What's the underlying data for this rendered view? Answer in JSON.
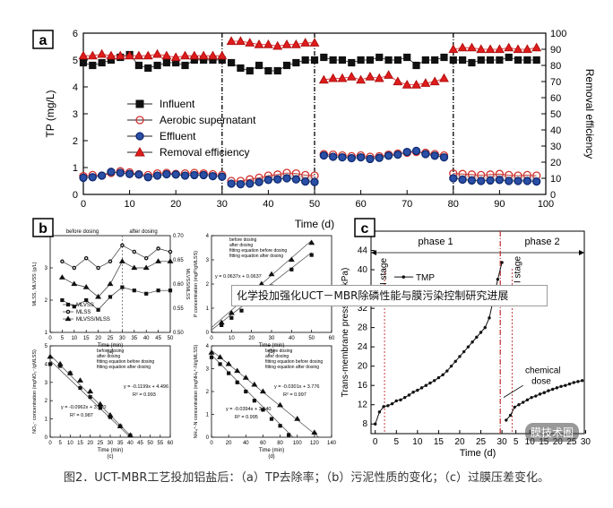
{
  "caption": "图2．UCT-MBR工艺投加铝盐后：（a）TP去除率；（b）污泥性质的变化；（c）过膜压差变化。",
  "overlay_text": "化学投加强化UCT－MBR除磷性能与膜污染控制研究进展",
  "watermark": "膜技术圈",
  "panel_labels": {
    "a": "a",
    "b": "b",
    "c": "c"
  },
  "chart_data": [
    {
      "panel": "a",
      "type": "line",
      "xlabel": "Time (d)",
      "ylabel": "TP (mg/L)",
      "y2label": "Removal efficiency",
      "xlim": [
        0,
        100
      ],
      "ylim": [
        0,
        6
      ],
      "y2lim": [
        0,
        100
      ],
      "xticks": [
        "0",
        "10",
        "20",
        "30",
        "40",
        "50",
        "60",
        "70",
        "80",
        "90",
        "100"
      ],
      "yticks": [
        "0",
        "1",
        "2",
        "3",
        "4",
        "5",
        "6"
      ],
      "y2ticks": [
        "0",
        "10",
        "20",
        "30",
        "40",
        "50",
        "60",
        "70",
        "80",
        "90",
        "100"
      ],
      "dividers": [
        30,
        50,
        80
      ],
      "legend": [
        "Influent",
        "Aerobic supernatant",
        "Effluent",
        "Removal efficiency"
      ],
      "x": [
        0,
        2,
        4,
        6,
        8,
        10,
        12,
        14,
        16,
        18,
        20,
        22,
        24,
        26,
        28,
        30,
        32,
        34,
        36,
        38,
        40,
        42,
        44,
        46,
        48,
        50,
        52,
        54,
        56,
        58,
        60,
        62,
        64,
        66,
        68,
        70,
        72,
        74,
        76,
        78,
        80,
        82,
        84,
        86,
        88,
        90,
        92,
        94,
        96,
        98
      ],
      "series": [
        {
          "name": "Influent",
          "axis": "left",
          "values": [
            4.9,
            4.8,
            4.9,
            5.0,
            5.1,
            5.2,
            4.8,
            4.7,
            4.8,
            4.9,
            4.9,
            4.8,
            5.0,
            5.0,
            5.0,
            5.0,
            4.9,
            4.7,
            4.6,
            4.8,
            4.6,
            4.6,
            4.8,
            4.9,
            5.0,
            5.0,
            5.1,
            5.0,
            5.0,
            4.9,
            5.0,
            5.0,
            5.1,
            5.0,
            5.0,
            5.1,
            4.8,
            5.0,
            5.0,
            5.1,
            5.0,
            5.0,
            4.9,
            5.0,
            5.0,
            5.0,
            5.1,
            5.0,
            5.0,
            5.0
          ]
        },
        {
          "name": "Aerobic supernatant",
          "axis": "left",
          "values": [
            0.68,
            0.72,
            0.7,
            0.8,
            0.86,
            0.82,
            0.75,
            0.72,
            0.78,
            0.8,
            0.76,
            0.78,
            0.8,
            0.78,
            0.75,
            0.72,
            0.5,
            0.5,
            0.56,
            0.62,
            0.7,
            0.74,
            0.8,
            0.78,
            0.72,
            0.7,
            1.5,
            1.48,
            1.45,
            1.42,
            1.45,
            1.4,
            1.42,
            1.48,
            1.52,
            1.55,
            1.58,
            1.55,
            1.5,
            1.45,
            0.78,
            0.76,
            0.74,
            0.72,
            0.74,
            0.76,
            0.72,
            0.7,
            0.72,
            0.7
          ]
        },
        {
          "name": "Effluent",
          "axis": "left",
          "values": [
            0.62,
            0.64,
            0.7,
            0.84,
            0.8,
            0.76,
            0.74,
            0.64,
            0.7,
            0.75,
            0.74,
            0.7,
            0.72,
            0.72,
            0.68,
            0.66,
            0.4,
            0.38,
            0.4,
            0.46,
            0.54,
            0.56,
            0.6,
            0.56,
            0.48,
            0.46,
            1.45,
            1.4,
            1.38,
            1.35,
            1.38,
            1.32,
            1.36,
            1.44,
            1.48,
            1.58,
            1.62,
            1.5,
            1.44,
            1.38,
            0.6,
            0.55,
            0.52,
            0.5,
            0.52,
            0.54,
            0.5,
            0.5,
            0.5,
            0.48
          ]
        },
        {
          "name": "Removal efficiency",
          "axis": "right",
          "values": [
            86,
            86,
            87,
            86,
            86,
            86,
            86,
            86,
            87,
            86,
            85,
            86,
            86,
            86,
            86,
            86,
            95,
            95,
            94,
            93,
            93,
            92,
            93,
            93,
            94,
            94,
            71,
            72,
            72,
            73,
            71,
            73,
            72,
            74,
            70,
            68,
            68,
            69,
            70,
            72,
            90,
            91,
            91,
            90,
            90,
            90,
            91,
            90,
            90,
            91
          ]
        }
      ]
    },
    {
      "panel": "b1",
      "type": "line",
      "xlabel": "Time (min)",
      "ylabel": "MLSS, MLVSS (g/L)",
      "y2label": "MLVSS/MLSS",
      "top_labels": [
        "before dosing",
        "after dosing"
      ],
      "xticks": [
        "0",
        "5",
        "10",
        "15",
        "20",
        "25",
        "30",
        "35",
        "40",
        "45",
        "50"
      ],
      "yticks": [
        "1",
        "2",
        "3",
        "4"
      ],
      "y2ticks": [
        "0.50",
        "0.55",
        "0.60",
        "0.65",
        "0.70"
      ],
      "sub_label": "(a)",
      "legend": [
        "MLVSS",
        "MLSS",
        "MLVSS/MLSS"
      ],
      "x": [
        5,
        10,
        15,
        20,
        25,
        30,
        35,
        40,
        45,
        50
      ],
      "series": [
        {
          "name": "MLVSS",
          "values": [
            2.0,
            1.8,
            2.0,
            1.7,
            2.1,
            2.4,
            2.3,
            2.2,
            2.3,
            2.3
          ]
        },
        {
          "name": "MLSS",
          "values": [
            3.2,
            3.0,
            3.3,
            3.0,
            3.2,
            3.7,
            3.5,
            3.3,
            3.6,
            3.5
          ]
        },
        {
          "name": "MLVSS/MLSS",
          "values": [
            2.7,
            2.5,
            2.4,
            2.1,
            2.5,
            3.2,
            3.0,
            3.0,
            3.2,
            3.2
          ]
        }
      ]
    },
    {
      "panel": "b2",
      "type": "scatter",
      "xlabel": "Time (min)",
      "ylabel": "P concentration (mgP/gMLSS)",
      "xticks": [
        "0",
        "10",
        "20",
        "30",
        "40",
        "50",
        "60"
      ],
      "yticks": [
        "0",
        "1",
        "2",
        "3",
        "4"
      ],
      "sub_label": "(b)",
      "legend": [
        "before dosing",
        "after dosing",
        "fitting equation before dosing",
        "fitting equation after dosing"
      ],
      "annotations": [
        "y = 0.0637x + 0.0637",
        "R² = 0.994"
      ],
      "series": [
        {
          "name": "before dosing",
          "x": [
            5,
            10,
            15,
            20,
            25,
            30,
            40,
            50
          ],
          "y": [
            0.3,
            0.6,
            0.9,
            1.3,
            1.6,
            1.9,
            2.6,
            3.2
          ]
        },
        {
          "name": "after dosing",
          "x": [
            5,
            10,
            15,
            20,
            25,
            30,
            40,
            50
          ],
          "y": [
            0.4,
            0.8,
            1.2,
            1.6,
            2.0,
            2.4,
            3.0,
            3.7
          ]
        }
      ]
    },
    {
      "panel": "b3",
      "type": "scatter",
      "xlabel": "Time (min)",
      "ylabel": "NO₃⁻ concentration (mgNO₃⁻/gMLSS)",
      "xticks": [
        "0",
        "5",
        "10",
        "15",
        "20",
        "25",
        "30",
        "35",
        "40",
        "45",
        "50",
        "55",
        "60"
      ],
      "yticks": [
        "0",
        "1",
        "2",
        "3",
        "4",
        "5"
      ],
      "sub_label": "(c)",
      "legend": [
        "before dosing",
        "after dosing",
        "fitting equation before dosing",
        "fitting equation after dosing"
      ],
      "annotations": [
        "y = -0.1199x + 4.496",
        "R² = 0.993",
        "y = -0.0962x + 3.970",
        "R² = 0.987"
      ],
      "series": [
        {
          "name": "before dosing",
          "x": [
            0,
            5,
            10,
            15,
            20,
            25,
            30,
            35,
            40
          ],
          "y": [
            4.0,
            3.9,
            3.5,
            2.7,
            2.2,
            1.6,
            1.1,
            0.6,
            0.1
          ]
        },
        {
          "name": "after dosing",
          "x": [
            0,
            5,
            10,
            15,
            20,
            25,
            30,
            35,
            40
          ],
          "y": [
            4.4,
            4.0,
            3.5,
            3.1,
            2.5,
            1.8,
            1.2,
            0.6,
            0.1
          ]
        }
      ]
    },
    {
      "panel": "b4",
      "type": "scatter",
      "xlabel": "Time (min)",
      "ylabel": "NH₄⁺-N concentration (mgNH₄⁺-N/gMLSS)",
      "xticks": [
        "0",
        "20",
        "40",
        "60",
        "80",
        "100",
        "120",
        "140"
      ],
      "yticks": [
        "0",
        "1",
        "2",
        "3",
        "4"
      ],
      "sub_label": "(d)",
      "legend": [
        "before dosing",
        "after dosing",
        "fitting equation before dosing",
        "fitting equation after dosing"
      ],
      "annotations": [
        "y = -0.0301x + 3.776",
        "R² = 0.997",
        "y = -0.0394x + 3.540",
        "R² = 0.995"
      ],
      "series": [
        {
          "name": "before dosing",
          "x": [
            0,
            10,
            20,
            30,
            40,
            50,
            60,
            70,
            80,
            90
          ],
          "y": [
            3.5,
            3.2,
            2.8,
            2.4,
            2.0,
            1.6,
            1.2,
            0.8,
            0.5,
            0.1
          ]
        },
        {
          "name": "after dosing",
          "x": [
            0,
            10,
            20,
            30,
            40,
            50,
            60,
            80,
            100,
            120
          ],
          "y": [
            3.7,
            3.5,
            3.2,
            2.9,
            2.6,
            2.3,
            2.0,
            1.4,
            0.8,
            0.2
          ]
        }
      ]
    },
    {
      "panel": "c",
      "type": "line",
      "xlabel": "Time (d)",
      "ylabel": "Trans-membrane pressure (kPa)",
      "xticks": [
        "0",
        "5",
        "10",
        "15",
        "20",
        "25",
        "30",
        "5",
        "10",
        "15",
        "20",
        "25",
        "30"
      ],
      "yticks": [
        "8",
        "12",
        "16",
        "20",
        "24",
        "28",
        "32",
        "36",
        "40",
        "44"
      ],
      "phases": [
        "phase 1",
        "phase 2"
      ],
      "stage_labels": [
        "I stage",
        "I stage"
      ],
      "annotations": [
        "chemical",
        "dose"
      ],
      "legend": [
        "TMP"
      ],
      "series": [
        {
          "name": "TMP",
          "x": [
            0,
            1,
            2,
            3,
            4,
            5,
            6,
            7,
            8,
            9,
            10,
            11,
            12,
            13,
            14,
            15,
            16,
            17,
            18,
            19,
            20,
            21,
            22,
            23,
            24,
            25,
            26,
            27,
            28,
            29,
            30,
            31,
            32,
            33,
            34,
            35,
            36,
            37,
            38,
            39,
            40,
            41,
            42,
            43,
            44,
            45,
            46,
            47,
            48,
            49
          ],
          "y": [
            8.0,
            10.5,
            11.6,
            11.8,
            12.2,
            12.8,
            13.0,
            13.5,
            14.0,
            14.6,
            15.0,
            15.5,
            16.0,
            16.5,
            17.0,
            17.6,
            18.2,
            19.0,
            20.0,
            21.0,
            22.0,
            23.0,
            24.0,
            25.0,
            26.0,
            27.0,
            28.0,
            30.0,
            34.0,
            38.0,
            41.5,
            8.8,
            9.8,
            11.5,
            12.0,
            12.5,
            13.0,
            13.5,
            13.8,
            14.2,
            14.5,
            14.9,
            15.2,
            15.5,
            15.8,
            16.0,
            16.3,
            16.6,
            16.8,
            17.0
          ]
        }
      ]
    }
  ]
}
